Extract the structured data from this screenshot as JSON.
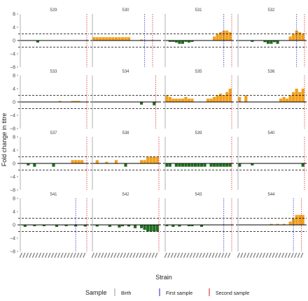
{
  "chart_data": {
    "type": "bar",
    "ylabel": "Fold change in titre",
    "xlabel": "Strain",
    "ylim": [
      -8,
      8
    ],
    "yticks": [
      -8,
      -4,
      0,
      4,
      8
    ],
    "hlines": [
      -2,
      0,
      2
    ],
    "n_strains": 21,
    "legend": {
      "position": "bottom",
      "title": "Sample",
      "items": [
        {
          "label": "Birth",
          "color": "#aaaaaa"
        },
        {
          "label": "First sample",
          "color": "#4444cc"
        },
        {
          "label": "Second sample",
          "color": "#dd4444"
        }
      ]
    },
    "colors": {
      "positive": "#f2a01c",
      "negative": "#1e6f1e"
    },
    "panels": [
      {
        "title": "529",
        "birth": 1,
        "first": null,
        "second": 21,
        "values": [
          0,
          0,
          0,
          0,
          0,
          -0.6,
          0,
          0,
          0,
          0,
          0,
          0,
          0,
          0,
          0,
          0,
          0,
          0,
          0,
          0,
          0
        ]
      },
      {
        "title": "530",
        "birth": 1,
        "first": 17,
        "second": 19,
        "values": [
          1,
          1,
          1,
          1,
          1,
          1,
          1,
          1,
          1,
          1,
          1,
          1,
          0,
          0,
          0,
          0.3,
          0,
          0,
          0,
          0,
          0
        ]
      },
      {
        "title": "531",
        "birth": 1,
        "first": 19,
        "second": 21,
        "values": [
          0,
          -0.4,
          -0.4,
          -0.6,
          -1,
          -1,
          -0.4,
          -0.6,
          -0.4,
          0,
          0,
          0,
          0,
          0,
          0,
          1.2,
          2,
          2.5,
          3,
          3,
          2.5
        ]
      },
      {
        "title": "532",
        "birth": 1,
        "first": 19,
        "second": 21,
        "values": [
          0,
          0,
          0,
          0,
          -0.4,
          0,
          0,
          0,
          -0.5,
          -1,
          -1,
          -0.5,
          -1,
          0,
          0,
          0,
          1.2,
          2,
          3,
          2.5,
          2
        ]
      },
      {
        "title": "533",
        "birth": 1,
        "first": null,
        "second": 21,
        "values": [
          0,
          0,
          0,
          0,
          0,
          0,
          0,
          0,
          0,
          0,
          0,
          0,
          0.3,
          0,
          0,
          0,
          0.3,
          0.3,
          0.3,
          0,
          0
        ]
      },
      {
        "title": "534",
        "birth": 1,
        "first": null,
        "second": 20,
        "values": [
          0,
          0,
          0,
          0,
          0,
          0,
          0,
          0,
          0,
          0,
          0,
          0,
          0,
          0,
          0,
          -0.8,
          0,
          0,
          0,
          -1,
          0
        ]
      },
      {
        "title": "535",
        "birth": 1,
        "first": null,
        "second": 21,
        "values": [
          2,
          1.5,
          1,
          1,
          1,
          1,
          1.5,
          1,
          1,
          0,
          0,
          0,
          0,
          1,
          1,
          1.5,
          2,
          2.5,
          2,
          3,
          4
        ]
      },
      {
        "title": "536",
        "birth": 1,
        "first": null,
        "second": 21,
        "values": [
          1.5,
          0,
          2,
          0,
          0,
          0,
          0,
          0,
          0,
          0,
          0,
          0,
          0,
          1,
          1.5,
          1,
          2,
          3,
          4,
          3,
          4
        ]
      },
      {
        "title": "537",
        "birth": 1,
        "first": null,
        "second": 21,
        "values": [
          0,
          0,
          -0.6,
          0,
          -1,
          0,
          0,
          0,
          0,
          0,
          -1,
          0,
          0,
          0,
          0,
          0,
          1,
          1,
          1,
          1,
          0
        ]
      },
      {
        "title": "538",
        "birth": 1,
        "first": null,
        "second": 21,
        "values": [
          0,
          1,
          0,
          0,
          0.5,
          0,
          0,
          1,
          0,
          0,
          -1,
          0,
          0,
          0,
          0,
          1,
          1,
          2,
          2,
          2,
          2
        ]
      },
      {
        "title": "539",
        "birth": 1,
        "first": null,
        "second": 21,
        "values": [
          -1,
          -1,
          0,
          -1,
          -1,
          -1,
          -1,
          -1,
          -1,
          -1,
          -1,
          -1,
          -1,
          0,
          -1,
          -1,
          -1,
          -1,
          -1,
          -1,
          -1
        ]
      },
      {
        "title": "540",
        "birth": 1,
        "first": null,
        "second": 21,
        "values": [
          -1,
          0,
          0,
          0,
          -0.6,
          0,
          0,
          0,
          0,
          0,
          0,
          0,
          0,
          0,
          0,
          0,
          0,
          0,
          0,
          0,
          -1
        ]
      },
      {
        "title": "541",
        "birth": 1,
        "first": 18,
        "second": 21,
        "values": [
          0,
          -0.6,
          0,
          0,
          -0.4,
          0,
          0,
          -0.4,
          0,
          0,
          0,
          -0.6,
          0,
          0,
          -0.4,
          0,
          0,
          -0.5,
          0,
          0,
          -0.5
        ]
      },
      {
        "title": "542",
        "birth": 1,
        "first": null,
        "second": 21,
        "values": [
          0,
          -0.5,
          0,
          0,
          0,
          -0.6,
          0,
          0,
          -0.8,
          -0.4,
          0,
          -0.5,
          0,
          -1,
          0,
          -1,
          -1.5,
          -2,
          -2,
          -2,
          -2
        ]
      },
      {
        "title": "543",
        "birth": 1,
        "first": 19,
        "second": 21,
        "values": [
          -0.4,
          0,
          -0.6,
          0,
          -0.5,
          0,
          0,
          -0.4,
          -0.4,
          0,
          0,
          -0.6,
          0,
          0,
          0,
          0,
          0,
          0,
          0,
          0,
          0
        ]
      },
      {
        "title": "544",
        "birth": 1,
        "first": 18,
        "second": 20,
        "values": [
          0,
          0,
          0,
          0,
          0,
          0,
          0,
          0,
          0,
          0,
          0.3,
          0,
          0.3,
          0,
          0.3,
          0,
          1,
          2,
          3,
          3,
          3
        ]
      }
    ]
  }
}
